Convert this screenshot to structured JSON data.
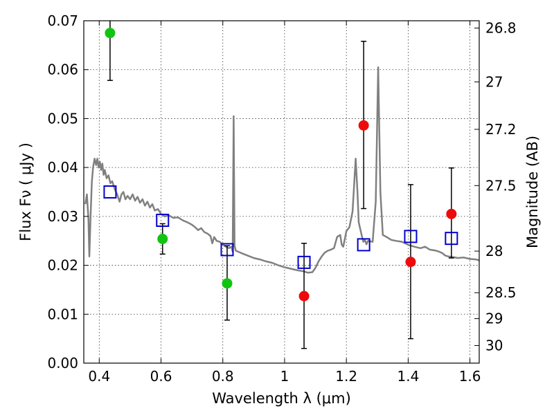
{
  "chart_data": {
    "type": "scatter",
    "xlabel": "Wavelength  λ (μm)",
    "ylabel": "Flux  Fν  ( μJy )",
    "ylabel_right": "Magnitude (AB)",
    "xlim": [
      0.35,
      1.63
    ],
    "ylim": [
      0.0,
      0.07
    ],
    "x_ticks": [
      0.4,
      0.6,
      0.8,
      1.0,
      1.2,
      1.4,
      1.6
    ],
    "x_tick_labels": [
      "0.4",
      "0.6",
      "0.8",
      "1",
      "1.2",
      "1.4",
      "1.6"
    ],
    "y_ticks": [
      0.0,
      0.01,
      0.02,
      0.03,
      0.04,
      0.05,
      0.06,
      0.07
    ],
    "y_tick_labels": [
      "0.00",
      "0.01",
      "0.02",
      "0.03",
      "0.04",
      "0.05",
      "0.06",
      "0.07"
    ],
    "right_ticks": [
      {
        "label": "26.8",
        "flux": 0.0685
      },
      {
        "label": "27",
        "flux": 0.0575
      },
      {
        "label": "27.2",
        "flux": 0.0478
      },
      {
        "label": "27.5",
        "flux": 0.0363
      },
      {
        "label": "28",
        "flux": 0.0229
      },
      {
        "label": "28.5",
        "flux": 0.0144
      },
      {
        "label": "29",
        "flux": 0.0091
      },
      {
        "label": "30",
        "flux": 0.0036
      }
    ],
    "grid": true,
    "colors": {
      "green": "#11c411",
      "red": "#ee0b0b",
      "model_square": "#0000cc",
      "sed": "#808080",
      "errorbar": "#000000"
    },
    "series": [
      {
        "marker": "circle-green",
        "x": [
          0.435,
          0.605,
          0.814
        ],
        "y": [
          0.0675,
          0.0254,
          0.0163
        ],
        "yerr_low": [
          0.0578,
          0.0223,
          0.0088
        ],
        "yerr_high": [
          0.0705,
          0.0285,
          0.024
        ]
      },
      {
        "marker": "circle-red",
        "x": [
          1.063,
          1.256,
          1.408,
          1.54
        ],
        "y": [
          0.0137,
          0.0486,
          0.0207,
          0.0305
        ],
        "yerr_low": [
          0.003,
          0.0316,
          0.005,
          0.0215
        ],
        "yerr_high": [
          0.0245,
          0.0658,
          0.0365,
          0.0399
        ]
      },
      {
        "marker": "square-blue",
        "x": [
          0.435,
          0.605,
          0.814,
          1.063,
          1.256,
          1.408,
          1.54
        ],
        "y": [
          0.035,
          0.0292,
          0.0232,
          0.0206,
          0.0242,
          0.0259,
          0.0255
        ]
      },
      {
        "marker": "line-gray",
        "points": [
          [
            0.355,
            0.0325
          ],
          [
            0.36,
            0.0345
          ],
          [
            0.365,
            0.0295
          ],
          [
            0.368,
            0.0218
          ],
          [
            0.372,
            0.03
          ],
          [
            0.376,
            0.037
          ],
          [
            0.38,
            0.04
          ],
          [
            0.385,
            0.0418
          ],
          [
            0.39,
            0.0405
          ],
          [
            0.394,
            0.0418
          ],
          [
            0.398,
            0.04
          ],
          [
            0.402,
            0.0412
          ],
          [
            0.406,
            0.0395
          ],
          [
            0.41,
            0.0408
          ],
          [
            0.414,
            0.0385
          ],
          [
            0.418,
            0.0395
          ],
          [
            0.424,
            0.0378
          ],
          [
            0.43,
            0.0384
          ],
          [
            0.436,
            0.0368
          ],
          [
            0.442,
            0.0372
          ],
          [
            0.45,
            0.0356
          ],
          [
            0.458,
            0.0345
          ],
          [
            0.466,
            0.033
          ],
          [
            0.472,
            0.0345
          ],
          [
            0.478,
            0.035
          ],
          [
            0.485,
            0.0335
          ],
          [
            0.492,
            0.0342
          ],
          [
            0.5,
            0.0335
          ],
          [
            0.508,
            0.0345
          ],
          [
            0.516,
            0.0332
          ],
          [
            0.524,
            0.034
          ],
          [
            0.532,
            0.0328
          ],
          [
            0.54,
            0.0335
          ],
          [
            0.548,
            0.0322
          ],
          [
            0.556,
            0.033
          ],
          [
            0.564,
            0.0318
          ],
          [
            0.572,
            0.0325
          ],
          [
            0.58,
            0.0312
          ],
          [
            0.59,
            0.0315
          ],
          [
            0.6,
            0.0305
          ],
          [
            0.612,
            0.03
          ],
          [
            0.625,
            0.0302
          ],
          [
            0.64,
            0.0297
          ],
          [
            0.655,
            0.0298
          ],
          [
            0.67,
            0.0292
          ],
          [
            0.685,
            0.0288
          ],
          [
            0.7,
            0.0283
          ],
          [
            0.71,
            0.0278
          ],
          [
            0.72,
            0.0272
          ],
          [
            0.73,
            0.0276
          ],
          [
            0.74,
            0.0268
          ],
          [
            0.75,
            0.0265
          ],
          [
            0.76,
            0.026
          ],
          [
            0.766,
            0.0245
          ],
          [
            0.772,
            0.0258
          ],
          [
            0.78,
            0.025
          ],
          [
            0.79,
            0.0248
          ],
          [
            0.8,
            0.0242
          ],
          [
            0.81,
            0.0238
          ],
          [
            0.82,
            0.0235
          ],
          [
            0.828,
            0.0238
          ],
          [
            0.832,
            0.0228
          ],
          [
            0.835,
            0.0505
          ],
          [
            0.838,
            0.024
          ],
          [
            0.842,
            0.023
          ],
          [
            0.86,
            0.0225
          ],
          [
            0.88,
            0.022
          ],
          [
            0.9,
            0.0215
          ],
          [
            0.92,
            0.0212
          ],
          [
            0.94,
            0.0208
          ],
          [
            0.96,
            0.0205
          ],
          [
            0.98,
            0.02
          ],
          [
            1.0,
            0.0196
          ],
          [
            1.02,
            0.0193
          ],
          [
            1.04,
            0.019
          ],
          [
            1.06,
            0.0188
          ],
          [
            1.075,
            0.0185
          ],
          [
            1.09,
            0.0186
          ],
          [
            1.1,
            0.0195
          ],
          [
            1.11,
            0.0208
          ],
          [
            1.12,
            0.0218
          ],
          [
            1.13,
            0.0226
          ],
          [
            1.14,
            0.023
          ],
          [
            1.15,
            0.0232
          ],
          [
            1.16,
            0.0235
          ],
          [
            1.17,
            0.0258
          ],
          [
            1.18,
            0.0262
          ],
          [
            1.185,
            0.0242
          ],
          [
            1.19,
            0.0238
          ],
          [
            1.2,
            0.027
          ],
          [
            1.21,
            0.0278
          ],
          [
            1.22,
            0.031
          ],
          [
            1.23,
            0.0418
          ],
          [
            1.236,
            0.035
          ],
          [
            1.24,
            0.0288
          ],
          [
            1.25,
            0.026
          ],
          [
            1.255,
            0.0248
          ],
          [
            1.26,
            0.0252
          ],
          [
            1.265,
            0.0243
          ],
          [
            1.27,
            0.025
          ],
          [
            1.285,
            0.0248
          ],
          [
            1.295,
            0.033
          ],
          [
            1.303,
            0.0605
          ],
          [
            1.31,
            0.035
          ],
          [
            1.318,
            0.0262
          ],
          [
            1.33,
            0.0258
          ],
          [
            1.345,
            0.0252
          ],
          [
            1.36,
            0.025
          ],
          [
            1.38,
            0.0248
          ],
          [
            1.4,
            0.0242
          ],
          [
            1.42,
            0.0238
          ],
          [
            1.44,
            0.0235
          ],
          [
            1.455,
            0.0238
          ],
          [
            1.47,
            0.0232
          ],
          [
            1.49,
            0.023
          ],
          [
            1.5,
            0.0228
          ],
          [
            1.51,
            0.0225
          ],
          [
            1.52,
            0.022
          ],
          [
            1.53,
            0.0218
          ],
          [
            1.545,
            0.0217
          ],
          [
            1.56,
            0.0215
          ],
          [
            1.58,
            0.0216
          ],
          [
            1.6,
            0.0213
          ],
          [
            1.62,
            0.0212
          ],
          [
            1.63,
            0.021
          ]
        ]
      }
    ]
  }
}
